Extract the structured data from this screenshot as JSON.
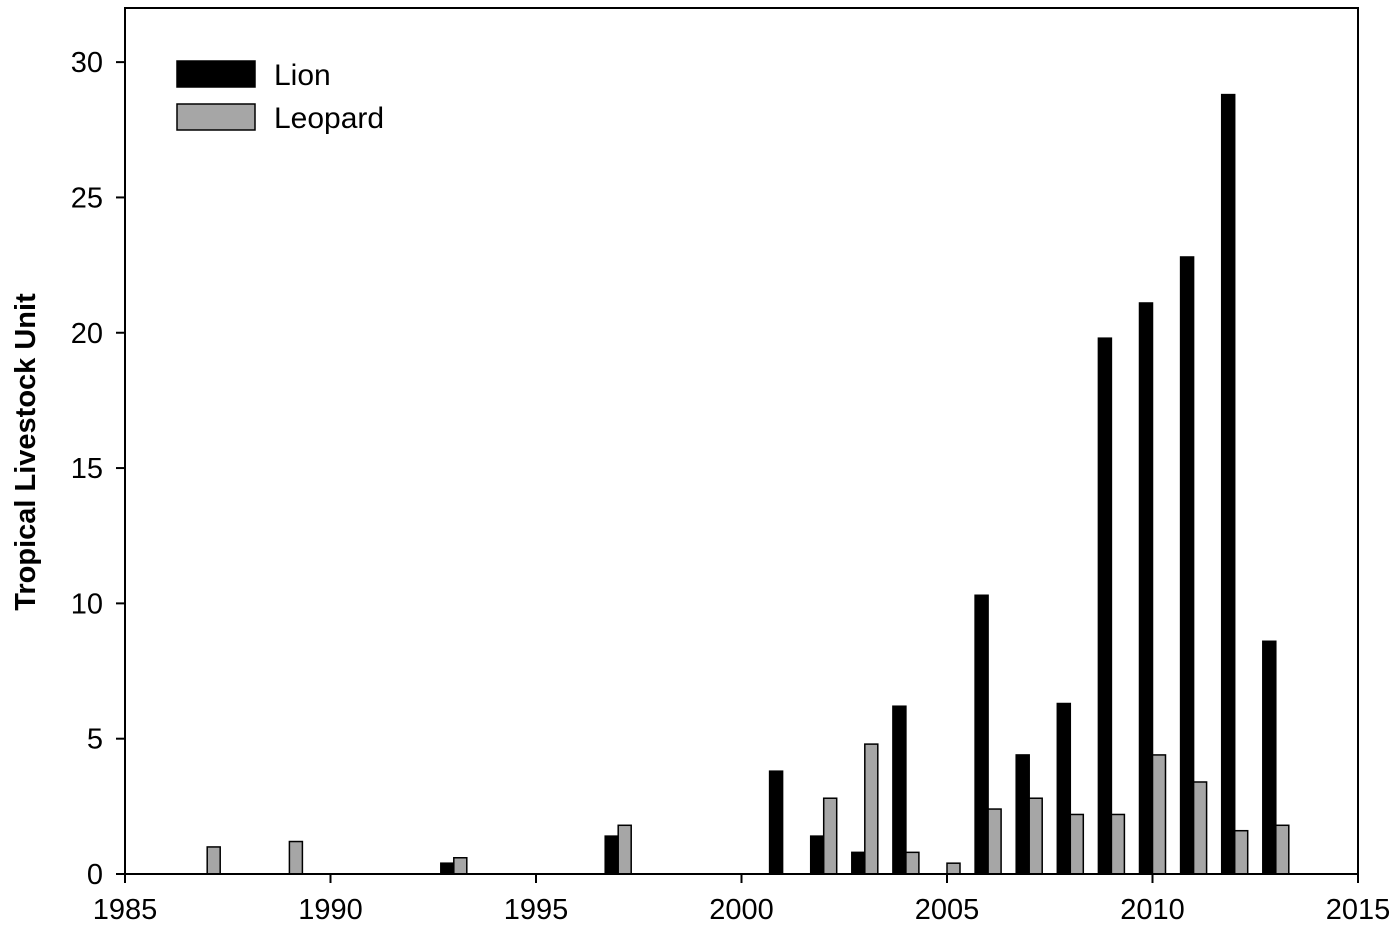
{
  "chart_data": {
    "type": "bar",
    "title": "",
    "xlabel": "",
    "ylabel": "Tropical Livestock Unit",
    "xlim": [
      1985,
      2015
    ],
    "ylim": [
      0,
      32
    ],
    "x_ticks": [
      1985,
      1990,
      1995,
      2000,
      2005,
      2010,
      2015
    ],
    "y_ticks": [
      0,
      5,
      10,
      15,
      20,
      25,
      30
    ],
    "grid": false,
    "legend_position": "top-left",
    "series": [
      {
        "name": "Lion",
        "color": "#000000",
        "points": [
          {
            "x": 1993,
            "y": 0.4
          },
          {
            "x": 1997,
            "y": 1.4
          },
          {
            "x": 2001,
            "y": 3.8
          },
          {
            "x": 2002,
            "y": 1.4
          },
          {
            "x": 2003,
            "y": 0.8
          },
          {
            "x": 2004,
            "y": 6.2
          },
          {
            "x": 2006,
            "y": 10.3
          },
          {
            "x": 2007,
            "y": 4.4
          },
          {
            "x": 2008,
            "y": 6.3
          },
          {
            "x": 2009,
            "y": 19.8
          },
          {
            "x": 2010,
            "y": 21.1
          },
          {
            "x": 2011,
            "y": 22.8
          },
          {
            "x": 2012,
            "y": 28.8
          },
          {
            "x": 2013,
            "y": 8.6
          }
        ]
      },
      {
        "name": "Leopard",
        "color": "#a6a6a6",
        "points": [
          {
            "x": 1987,
            "y": 1.0
          },
          {
            "x": 1989,
            "y": 1.2
          },
          {
            "x": 1993,
            "y": 0.6
          },
          {
            "x": 1997,
            "y": 1.8
          },
          {
            "x": 2002,
            "y": 2.8
          },
          {
            "x": 2003,
            "y": 4.8
          },
          {
            "x": 2004,
            "y": 0.8
          },
          {
            "x": 2005,
            "y": 0.4
          },
          {
            "x": 2006,
            "y": 2.4
          },
          {
            "x": 2007,
            "y": 2.8
          },
          {
            "x": 2008,
            "y": 2.2
          },
          {
            "x": 2009,
            "y": 2.2
          },
          {
            "x": 2010,
            "y": 4.4
          },
          {
            "x": 2011,
            "y": 3.4
          },
          {
            "x": 2012,
            "y": 1.6
          },
          {
            "x": 2013,
            "y": 1.8
          }
        ]
      }
    ]
  }
}
